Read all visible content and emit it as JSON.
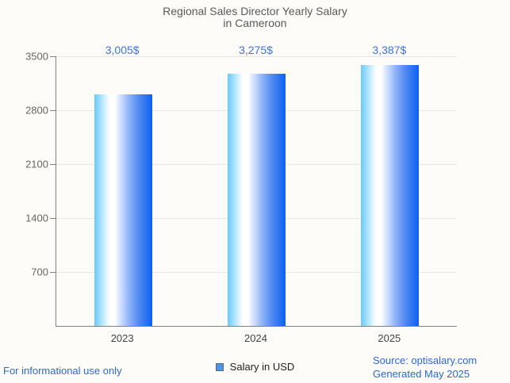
{
  "title": {
    "line1": "Regional Sales Director Yearly Salary",
    "line2": "in Cameroon"
  },
  "chart_data": {
    "type": "bar",
    "title": "Regional Sales Director Yearly Salary in Cameroon",
    "categories": [
      "2023",
      "2024",
      "2025"
    ],
    "series": [
      {
        "name": "Salary in USD",
        "values": [
          3005,
          3275,
          3387
        ]
      }
    ],
    "value_labels": [
      "3,005$",
      "3,275$",
      "3,387$"
    ],
    "xlabel": "",
    "ylabel": "",
    "ylim": [
      0,
      3500
    ],
    "yticks": [
      700,
      1400,
      2100,
      2800,
      3500
    ],
    "grid": true,
    "legend_position": "bottom"
  },
  "legend": {
    "label": "Salary in USD"
  },
  "footer": {
    "disclaimer": "For informational use only",
    "source_line1": "Source: optisalary.com",
    "source_line2": "Generated May 2025"
  },
  "colors": {
    "background": "#fdfcf9",
    "title_gray": "#58595b",
    "annotation": "#3b72de",
    "link_blue": "#2a68d8",
    "axis_label_gray": "#666666",
    "category_label": "#404347",
    "axis_line": "#808080",
    "gridline": "#e7e6e3",
    "legend_marker_fill": "#4d94ea",
    "legend_marker_border": "#5a6772",
    "legend_text": "#1f1f1f",
    "bar_gradient": [
      "#69cbfd 0%",
      "#b9e7fe 14%",
      "#ffffff 26%",
      "#ffffff 35%",
      "#8fb3f8 60%",
      "#4c86f2 78%",
      "#0b61f2 100%"
    ]
  }
}
